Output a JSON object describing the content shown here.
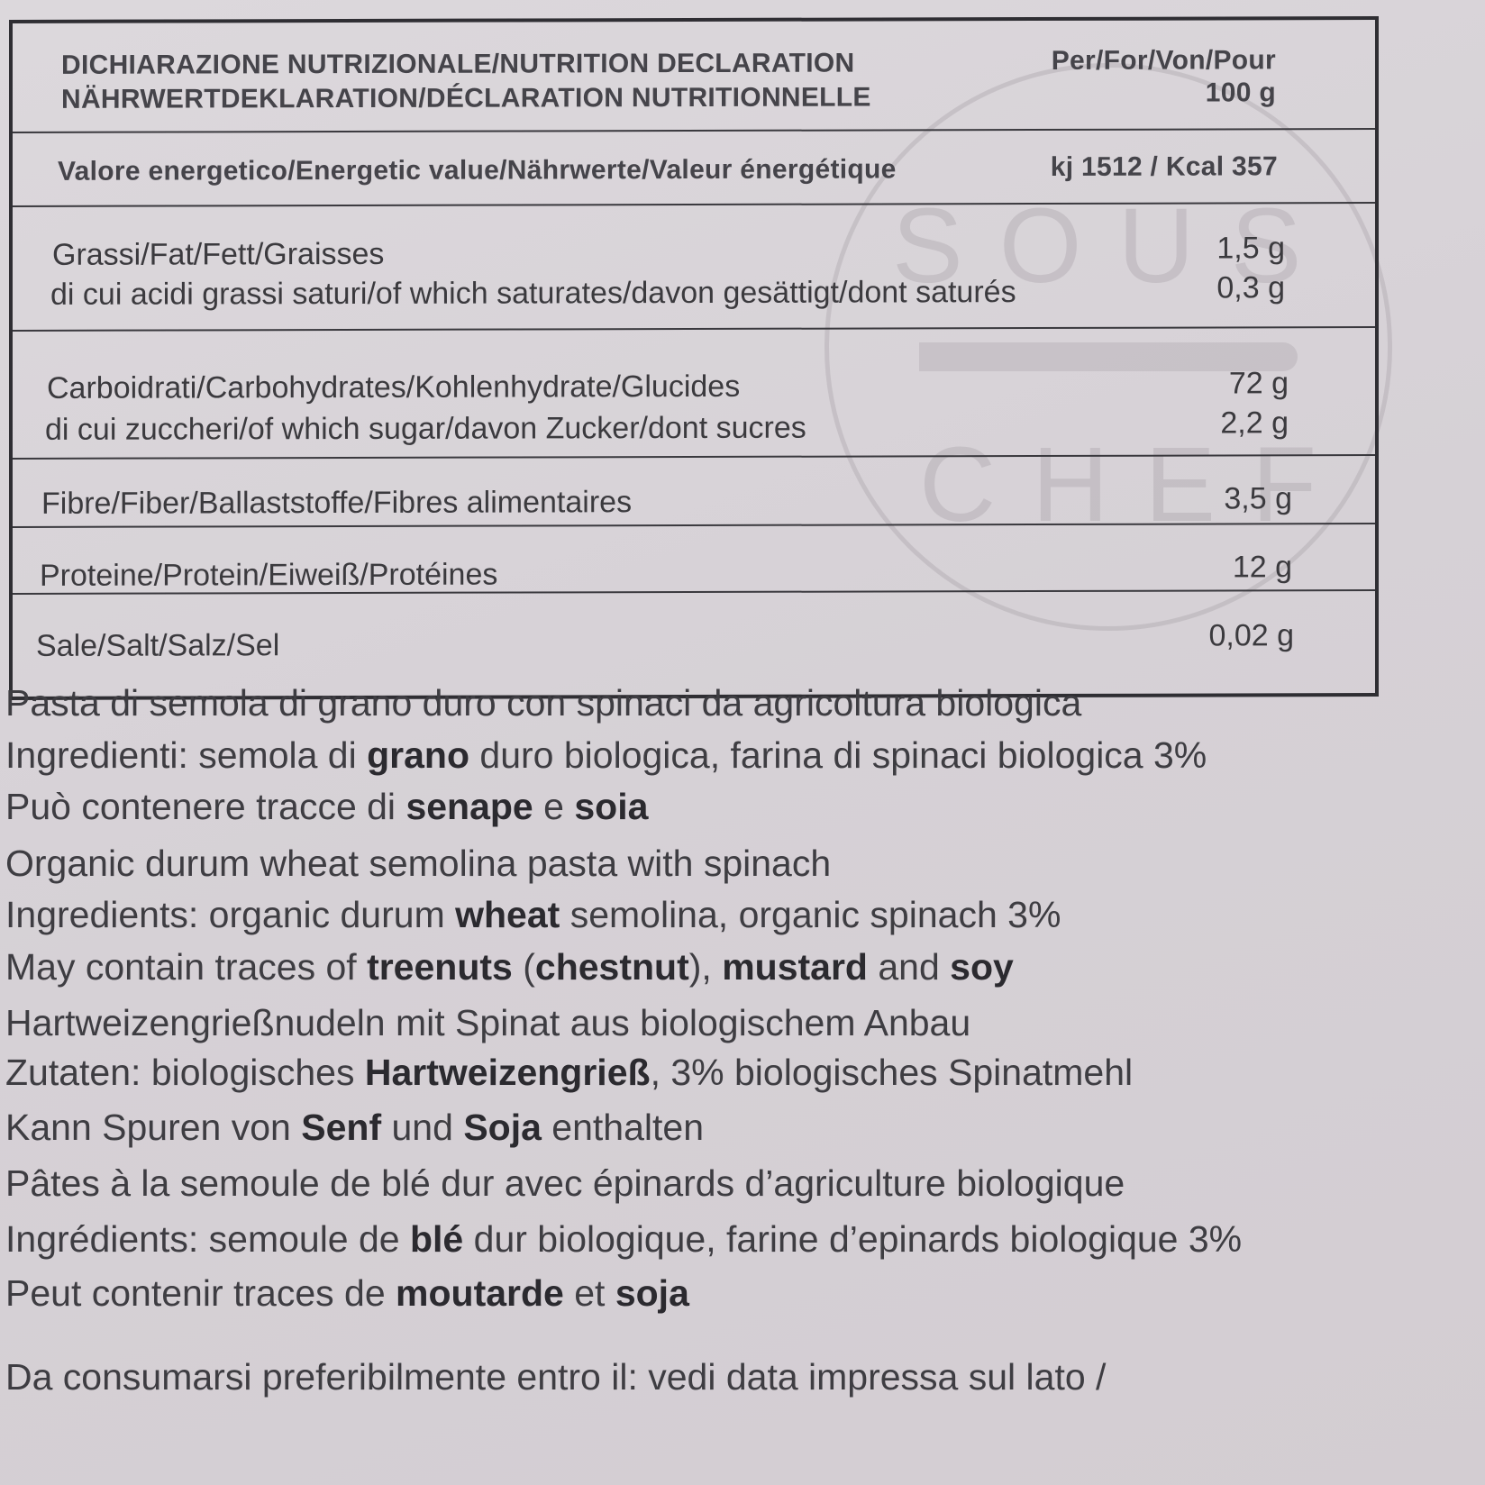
{
  "watermark": {
    "top": "SOUS",
    "bottom": "CHEF"
  },
  "table": {
    "header": {
      "title_line1": "DICHIARAZIONE NUTRIZIONALE/NUTRITION DECLARATION",
      "title_line2": "NÄHRWERTDEKLARATION/DÉCLARATION NUTRITIONNELLE",
      "per_line1": "Per/For/Von/Pour",
      "per_line2": "100 g"
    },
    "energy": {
      "label": "Valore energetico/Energetic value/Nährwerte/Valeur énergétique",
      "value": "kj 1512 / Kcal 357"
    },
    "fat": {
      "label": "Grassi/Fat/Fett/Graisses",
      "value": "1,5 g",
      "sub_label": "di cui acidi grassi saturi/of which saturates/davon gesättigt/dont saturés",
      "sub_value": "0,3 g"
    },
    "carbs": {
      "label": "Carboidrati/Carbohydrates/Kohlenhydrate/Glucides",
      "value": "72 g",
      "sub_label": "di cui zuccheri/of which sugar/davon Zucker/dont sucres",
      "sub_value": "2,2 g"
    },
    "fibre": {
      "label": "Fibre/Fiber/Ballaststoffe/Fibres alimentaires",
      "value": "3,5 g"
    },
    "protein": {
      "label": "Proteine/Protein/Eiweiß/Protéines",
      "value": "12 g"
    },
    "salt": {
      "label": "Sale/Salt/Salz/Sel",
      "value": "0,02 g"
    }
  },
  "paragraphs": [
    [
      {
        "t": "Pasta di semola di grano duro con spinaci da agricoltura biologica"
      }
    ],
    [
      {
        "t": "Ingredienti: semola di "
      },
      {
        "t": "grano",
        "b": true
      },
      {
        "t": " duro biologica, farina di spinaci biologica 3%"
      }
    ],
    [
      {
        "t": "Può contenere tracce di "
      },
      {
        "t": "senape",
        "b": true
      },
      {
        "t": " e "
      },
      {
        "t": "soia",
        "b": true
      }
    ],
    [
      {
        "t": "Organic durum wheat semolina pasta with spinach"
      }
    ],
    [
      {
        "t": "Ingredients: organic durum "
      },
      {
        "t": "wheat",
        "b": true
      },
      {
        "t": " semolina, organic spinach 3%"
      }
    ],
    [
      {
        "t": "May contain traces of "
      },
      {
        "t": "treenuts",
        "b": true
      },
      {
        "t": " ("
      },
      {
        "t": "chestnut",
        "b": true
      },
      {
        "t": "), "
      },
      {
        "t": "mustard",
        "b": true
      },
      {
        "t": " and "
      },
      {
        "t": "soy",
        "b": true
      }
    ],
    [
      {
        "t": "Hartweizengrießnudeln mit Spinat aus biologischem Anbau"
      }
    ],
    [
      {
        "t": "Zutaten: biologisches "
      },
      {
        "t": "Hartweizengrieß",
        "b": true
      },
      {
        "t": ", 3% biologisches Spinatmehl"
      }
    ],
    [
      {
        "t": "Kann Spuren von "
      },
      {
        "t": "Senf",
        "b": true
      },
      {
        "t": " und "
      },
      {
        "t": "Soja",
        "b": true
      },
      {
        "t": " enthalten"
      }
    ],
    [
      {
        "t": "Pâtes à la semoule de blé dur avec épinards d’agriculture biologique"
      }
    ],
    [
      {
        "t": "Ingrédients: semoule de "
      },
      {
        "t": "blé",
        "b": true
      },
      {
        "t": " dur biologique, farine d’epinards biologique 3%"
      }
    ],
    [
      {
        "t": "Peut contenir traces de "
      },
      {
        "t": "moutarde",
        "b": true
      },
      {
        "t": " et "
      },
      {
        "t": "soja",
        "b": true
      }
    ],
    [
      {
        "t": "Da consumarsi preferibilmente entro il: vedi data impressa sul lato /"
      }
    ]
  ]
}
